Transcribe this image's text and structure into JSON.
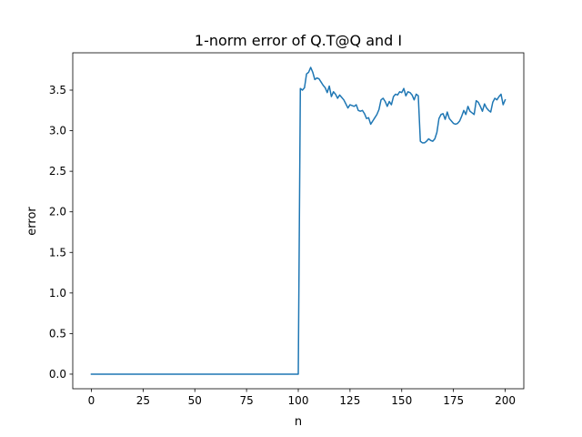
{
  "chart_data": {
    "type": "line",
    "title": "1-norm error of Q.T@Q and I",
    "xlabel": "n",
    "ylabel": "error",
    "xlim": [
      -9,
      209
    ],
    "ylim": [
      -0.18,
      3.96
    ],
    "xticks": [
      0,
      25,
      50,
      75,
      100,
      125,
      150,
      175,
      200
    ],
    "yticks": [
      0.0,
      0.5,
      1.0,
      1.5,
      2.0,
      2.5,
      3.0,
      3.5
    ],
    "xtick_labels": [
      "0",
      "25",
      "50",
      "75",
      "100",
      "125",
      "150",
      "175",
      "200"
    ],
    "ytick_labels": [
      "0.0",
      "0.5",
      "1.0",
      "1.5",
      "2.0",
      "2.5",
      "3.0",
      "3.5"
    ],
    "grid": false,
    "series": [
      {
        "color": "#1f77b4",
        "x": [
          0,
          10,
          20,
          30,
          40,
          50,
          60,
          70,
          80,
          90,
          100,
          101,
          102,
          103,
          104,
          105,
          106,
          107,
          108,
          109,
          110,
          111,
          112,
          113,
          114,
          115,
          116,
          117,
          118,
          119,
          120,
          121,
          122,
          123,
          124,
          125,
          126,
          127,
          128,
          129,
          130,
          131,
          132,
          133,
          134,
          135,
          136,
          137,
          138,
          139,
          140,
          141,
          142,
          143,
          144,
          145,
          146,
          147,
          148,
          149,
          150,
          151,
          152,
          153,
          154,
          155,
          156,
          157,
          158,
          159,
          160,
          161,
          162,
          163,
          164,
          165,
          166,
          167,
          168,
          169,
          170,
          171,
          172,
          173,
          174,
          175,
          176,
          177,
          178,
          179,
          180,
          181,
          182,
          183,
          184,
          185,
          186,
          187,
          188,
          189,
          190,
          191,
          192,
          193,
          194,
          195,
          196,
          197,
          198,
          199,
          200
        ],
        "y": [
          0,
          0,
          0,
          0,
          0,
          0,
          0,
          0,
          0,
          0,
          0,
          3.52,
          3.5,
          3.53,
          3.7,
          3.72,
          3.78,
          3.72,
          3.63,
          3.65,
          3.64,
          3.6,
          3.56,
          3.53,
          3.47,
          3.55,
          3.42,
          3.48,
          3.45,
          3.4,
          3.44,
          3.41,
          3.38,
          3.33,
          3.28,
          3.32,
          3.31,
          3.3,
          3.32,
          3.25,
          3.24,
          3.25,
          3.21,
          3.15,
          3.16,
          3.08,
          3.12,
          3.16,
          3.2,
          3.26,
          3.38,
          3.4,
          3.36,
          3.3,
          3.36,
          3.32,
          3.42,
          3.45,
          3.44,
          3.48,
          3.47,
          3.52,
          3.43,
          3.48,
          3.47,
          3.44,
          3.38,
          3.45,
          3.43,
          2.87,
          2.85,
          2.85,
          2.87,
          2.9,
          2.88,
          2.87,
          2.9,
          2.98,
          3.15,
          3.2,
          3.21,
          3.14,
          3.23,
          3.15,
          3.12,
          3.09,
          3.08,
          3.09,
          3.12,
          3.18,
          3.25,
          3.2,
          3.3,
          3.24,
          3.22,
          3.2,
          3.37,
          3.35,
          3.3,
          3.24,
          3.33,
          3.28,
          3.25,
          3.23,
          3.35,
          3.4,
          3.38,
          3.42,
          3.45,
          3.32,
          3.38
        ]
      }
    ]
  }
}
